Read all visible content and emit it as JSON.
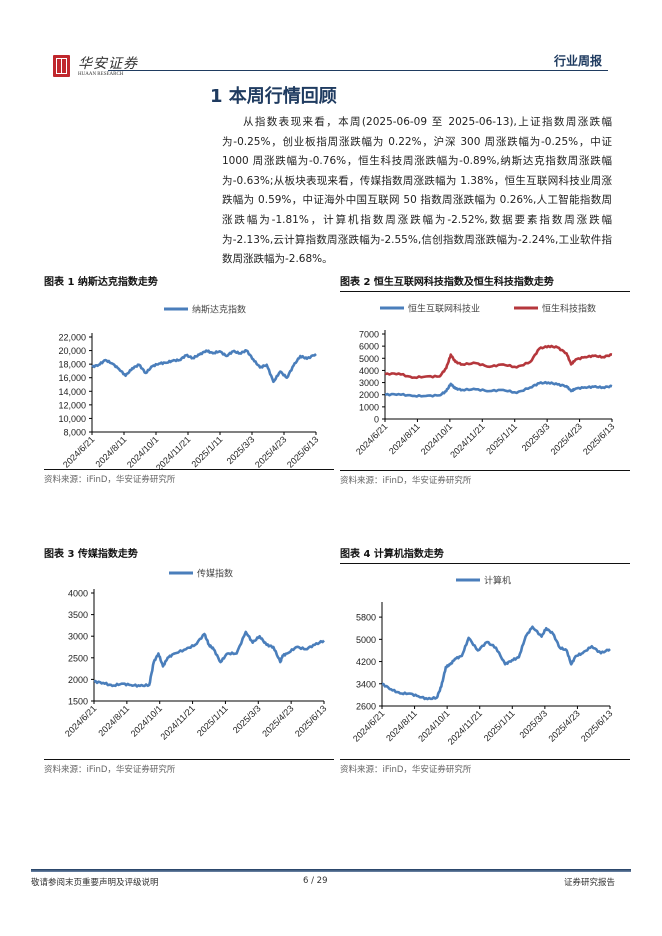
{
  "header": {
    "logo_cn": "华安证券",
    "logo_en": "HUAAN RESEARCH",
    "report_type": "行业周报"
  },
  "section": {
    "title": "1 本周行情回顾",
    "paragraph": "从指数表现来看，本周(2025-06-09 至 2025-06-13),上证指数周涨跌幅为-0.25%，创业板指周涨跌幅为 0.22%，沪深 300 周涨跌幅为-0.25%，中证 1000 周涨跌幅为-0.76%，恒生科技周涨跌幅为-0.89%,纳斯达克指数周涨跌幅为-0.63%;从板块表现来看，传媒指数周涨跌幅为 1.38%，恒生互联网科技业周涨跌幅为 0.59%，中证海外中国互联网 50 指数周涨跌幅为 0.26%,人工智能指数周涨跌幅为-1.81%，计算机指数周涨跌幅为-2.52%,数据要素指数周涨跌幅为-2.13%,云计算指数周涨跌幅为-2.55%,信创指数周涨跌幅为-2.24%,工业软件指数周涨跌幅为-2.68%。"
  },
  "figures": [
    {
      "title": "图表 1 纳斯达克指数走势",
      "source": "资料来源：iFinD，华安证券研究所"
    },
    {
      "title": "图表 2 恒生互联网科技指数及恒生科技指数走势",
      "source": "资料来源：iFinD，华安证券研究所"
    },
    {
      "title": "图表 3 传媒指数走势",
      "source": "资料来源：iFinD，华安证券研究所"
    },
    {
      "title": "图表 4 计算机指数走势",
      "source": "资料来源：iFinD，华安证券研究所"
    }
  ],
  "chart_data": [
    {
      "type": "line",
      "title": "纳斯达克指数",
      "categories": [
        "2024/6/21",
        "2024/8/11",
        "2024/10/1",
        "2024/11/21",
        "2025/1/11",
        "2025/3/3",
        "2025/4/23",
        "2025/6/13"
      ],
      "ytick_labels": [
        "8,000",
        "10,000",
        "12,000",
        "14,000",
        "16,000",
        "18,000",
        "20,000",
        "22,000"
      ],
      "ylim": [
        8000,
        22000
      ],
      "series": [
        {
          "name": "纳斯达克指数",
          "color": "#4a7ebb",
          "x": [
            0,
            0.03,
            0.06,
            0.09,
            0.12,
            0.15,
            0.18,
            0.21,
            0.24,
            0.27,
            0.3,
            0.33,
            0.36,
            0.39,
            0.42,
            0.45,
            0.48,
            0.51,
            0.54,
            0.57,
            0.6,
            0.63,
            0.66,
            0.69,
            0.72,
            0.75,
            0.78,
            0.81,
            0.84,
            0.87,
            0.9,
            0.93,
            0.96,
            1.0
          ],
          "values": [
            17600,
            17900,
            18600,
            18100,
            17300,
            16300,
            17400,
            17900,
            16700,
            17700,
            18100,
            18200,
            18500,
            18600,
            19300,
            18900,
            19400,
            20000,
            19600,
            19900,
            19200,
            19900,
            19600,
            20000,
            18700,
            17500,
            17900,
            15400,
            16900,
            16000,
            17800,
            19200,
            18800,
            19500
          ]
        }
      ],
      "legend": "top-center",
      "grid": false
    },
    {
      "type": "line",
      "title": "恒生互联网科技业 / 恒生科技指数",
      "categories": [
        "2024/6/21",
        "2024/8/11",
        "2024/10/1",
        "2024/11/21",
        "2025/1/11",
        "2025/3/3",
        "2025/4/23",
        "2025/6/13"
      ],
      "ytick_labels": [
        "0",
        "1000",
        "2000",
        "3000",
        "4000",
        "5000",
        "6000",
        "7000"
      ],
      "ylim": [
        0,
        7000
      ],
      "series": [
        {
          "name": "恒生互联网科技业",
          "color": "#4a7ebb",
          "x": [
            0,
            0.06,
            0.12,
            0.18,
            0.24,
            0.27,
            0.29,
            0.31,
            0.34,
            0.4,
            0.46,
            0.52,
            0.58,
            0.64,
            0.68,
            0.72,
            0.76,
            0.8,
            0.82,
            0.84,
            0.88,
            0.92,
            0.96,
            1.0
          ],
          "values": [
            2000,
            2050,
            1900,
            1900,
            1950,
            2300,
            2900,
            2500,
            2400,
            2450,
            2300,
            2400,
            2150,
            2600,
            2950,
            3000,
            2850,
            2700,
            2300,
            2500,
            2600,
            2650,
            2600,
            2700
          ]
        },
        {
          "name": "恒生科技指数",
          "color": "#b5373c",
          "x": [
            0,
            0.06,
            0.12,
            0.18,
            0.24,
            0.27,
            0.29,
            0.31,
            0.34,
            0.4,
            0.46,
            0.52,
            0.58,
            0.64,
            0.68,
            0.72,
            0.76,
            0.8,
            0.82,
            0.84,
            0.88,
            0.92,
            0.96,
            1.0
          ],
          "values": [
            3700,
            3750,
            3400,
            3500,
            3500,
            4200,
            5300,
            4700,
            4500,
            4600,
            4300,
            4500,
            4250,
            4700,
            5800,
            6000,
            5900,
            5400,
            4500,
            4900,
            5100,
            5200,
            5100,
            5300
          ]
        }
      ],
      "legend": "top-center",
      "grid": false
    },
    {
      "type": "line",
      "title": "传媒指数",
      "categories": [
        "2024/6/21",
        "2024/8/11",
        "2024/10/1",
        "2024/11/21",
        "2025/1/11",
        "2025/3/3",
        "2025/4/23",
        "2025/6/13"
      ],
      "ytick_labels": [
        "1500",
        "2000",
        "2500",
        "3000",
        "3500",
        "4000"
      ],
      "ylim": [
        1500,
        4000
      ],
      "series": [
        {
          "name": "传媒指数",
          "color": "#4a7ebb",
          "x": [
            0,
            0.04,
            0.08,
            0.12,
            0.16,
            0.2,
            0.24,
            0.26,
            0.28,
            0.3,
            0.32,
            0.35,
            0.4,
            0.44,
            0.48,
            0.5,
            0.52,
            0.55,
            0.58,
            0.62,
            0.66,
            0.69,
            0.72,
            0.75,
            0.78,
            0.81,
            0.82,
            0.84,
            0.88,
            0.92,
            0.96,
            1.0
          ],
          "values": [
            1950,
            1920,
            1850,
            1900,
            1870,
            1850,
            1870,
            2400,
            2600,
            2300,
            2500,
            2600,
            2700,
            2800,
            3050,
            2800,
            2700,
            2400,
            2600,
            2600,
            3100,
            2850,
            3000,
            2800,
            2750,
            2400,
            2550,
            2600,
            2750,
            2700,
            2800,
            2900
          ]
        }
      ],
      "legend": "top-center",
      "grid": false
    },
    {
      "type": "line",
      "title": "计算机",
      "categories": [
        "2024/6/21",
        "2024/8/11",
        "2024/10/1",
        "2024/11/21",
        "2025/1/11",
        "2025/3/3",
        "2025/4/23",
        "2025/6/13"
      ],
      "ytick_labels": [
        "2600",
        "3400",
        "4200",
        "5000",
        "5800"
      ],
      "ylim": [
        2600,
        6200
      ],
      "series": [
        {
          "name": "计算机",
          "color": "#4a7ebb",
          "x": [
            0,
            0.04,
            0.08,
            0.12,
            0.16,
            0.2,
            0.24,
            0.26,
            0.28,
            0.3,
            0.32,
            0.35,
            0.38,
            0.42,
            0.46,
            0.5,
            0.54,
            0.57,
            0.6,
            0.63,
            0.66,
            0.7,
            0.72,
            0.75,
            0.78,
            0.81,
            0.83,
            0.85,
            0.88,
            0.92,
            0.96,
            1.0
          ],
          "values": [
            3400,
            3200,
            3050,
            3050,
            2950,
            2850,
            2900,
            3300,
            4000,
            4100,
            4300,
            4400,
            5050,
            4600,
            4900,
            4700,
            4100,
            4250,
            4350,
            5100,
            5450,
            5100,
            5400,
            5200,
            4700,
            4600,
            4100,
            4400,
            4500,
            4750,
            4500,
            4650
          ]
        }
      ],
      "legend": "top-center",
      "grid": false
    }
  ],
  "footer": {
    "disclaimer": "敬请参阅末页重要声明及评级说明",
    "page": "6 / 29",
    "doc_type": "证券研究报告"
  }
}
